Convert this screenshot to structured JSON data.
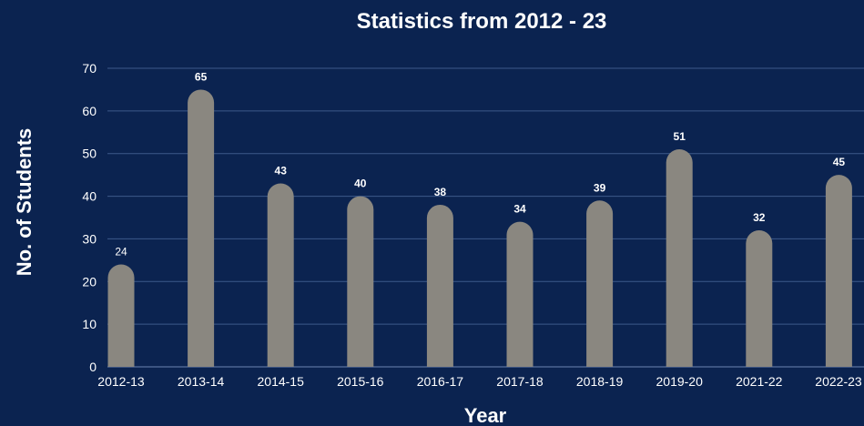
{
  "chart_data": {
    "type": "bar",
    "title": "Statistics from 2012 - 23",
    "xlabel": "Year",
    "ylabel": "No. of Students",
    "categories": [
      "2012-13",
      "2013-14",
      "2014-15",
      "2015-16",
      "2016-17",
      "2017-18",
      "2018-19",
      "2019-20",
      "2021-22",
      "2022-23"
    ],
    "values": [
      24,
      65,
      43,
      40,
      38,
      34,
      39,
      51,
      32,
      45
    ],
    "data_labels": [
      "24",
      "65",
      "43",
      "40",
      "38",
      "34",
      "39",
      "51",
      "32",
      "45"
    ],
    "ylim": [
      0,
      70
    ],
    "yticks": [
      "0",
      "10",
      "20",
      "30",
      "40",
      "50",
      "60",
      "70"
    ],
    "grid": true,
    "legend": "none",
    "colors": {
      "background": "#0b2350",
      "bar": "#8a8780",
      "text": "#ffffff",
      "grid": "#3d5a8a"
    }
  }
}
